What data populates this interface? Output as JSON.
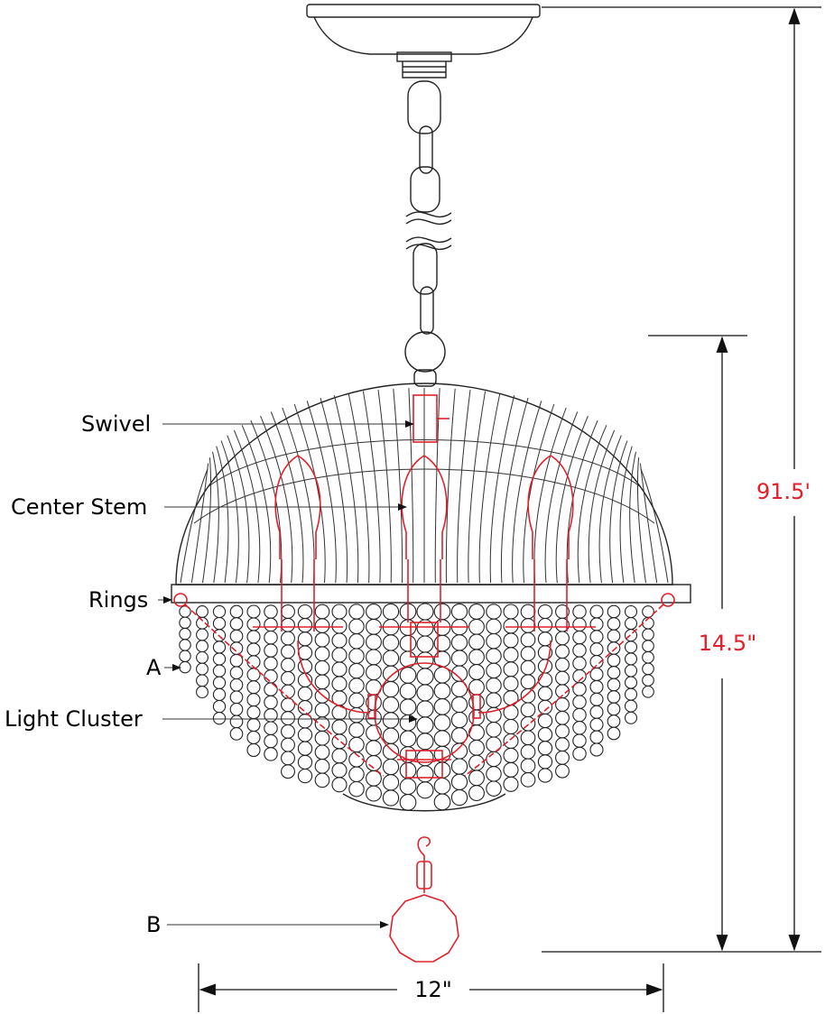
{
  "labels": {
    "swivel": "Swivel",
    "center_stem": "Center Stem",
    "rings": "Rings",
    "a": "A",
    "light_cluster": "Light Cluster",
    "b": "B"
  },
  "dimensions": {
    "overall_height": "91.5'",
    "body_height": "14.5\"",
    "width": "12\""
  }
}
